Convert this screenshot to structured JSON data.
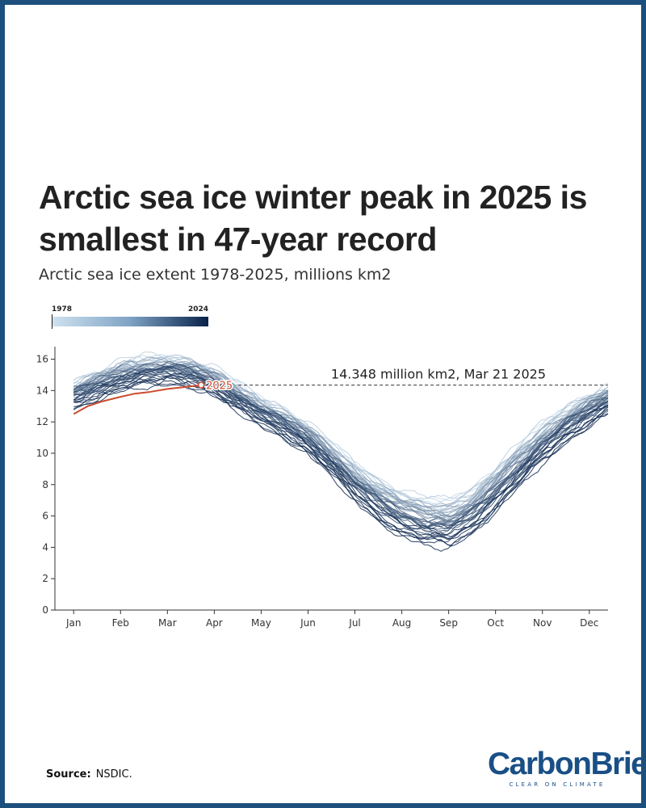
{
  "title": "Arctic sea ice winter peak in 2025 is smallest in 47-year record",
  "subtitle": "Arctic sea ice extent 1978-2025, millions km2",
  "legend": {
    "start": "1978",
    "end": "2024"
  },
  "annotation": "14.348 million km2, Mar 21 2025",
  "highlight_label": "2025",
  "source_label": "Source:",
  "source_text": "NSDIC.",
  "logo": {
    "name": "CarbonBrief",
    "tagline": "CLEAR ON CLIMATE"
  },
  "colors": {
    "old_years": "#cfe2f0",
    "recent_years": "#08224a",
    "highlight": "#cc4b2d",
    "frame": "#1d4f7c",
    "logo": "#1a4f86"
  },
  "chart_data": {
    "type": "line",
    "x_unit": "month",
    "x_ticks": [
      "Jan",
      "Feb",
      "Mar",
      "Apr",
      "May",
      "Jun",
      "Jul",
      "Aug",
      "Sep",
      "Oct",
      "Nov",
      "Dec"
    ],
    "y_ticks": [
      0,
      2,
      4,
      6,
      8,
      10,
      12,
      14,
      16
    ],
    "ylim": [
      0,
      16.8
    ],
    "year_range": [
      1978,
      2024
    ],
    "x_points": [
      1,
      1.5,
      2,
      2.5,
      3,
      3.5,
      4,
      4.5,
      5,
      5.5,
      6,
      6.5,
      7,
      7.5,
      8,
      8.5,
      9,
      9.5,
      10,
      10.5,
      11,
      11.5,
      12,
      12.4
    ],
    "climatology_1978": [
      14.3,
      15.0,
      15.6,
      15.9,
      16.0,
      15.8,
      15.2,
      14.2,
      13.3,
      12.6,
      11.7,
      10.4,
      9.2,
      8.2,
      7.5,
      7.0,
      6.9,
      7.6,
      9.0,
      10.4,
      11.7,
      12.8,
      13.6,
      14.0
    ],
    "climatology_2024": [
      13.2,
      13.8,
      14.3,
      14.6,
      14.8,
      14.6,
      14.0,
      13.0,
      12.1,
      11.3,
      10.3,
      8.9,
      7.3,
      6.0,
      5.0,
      4.5,
      4.3,
      5.2,
      6.6,
      8.2,
      9.7,
      11.0,
      12.1,
      12.9
    ],
    "series": [
      {
        "name": "2025",
        "x": [
          1,
          1.3,
          1.6,
          2,
          2.3,
          2.6,
          3,
          3.3,
          3.6,
          3.72
        ],
        "values": [
          12.5,
          13.0,
          13.3,
          13.6,
          13.8,
          13.9,
          14.1,
          14.2,
          14.3,
          14.348
        ]
      }
    ],
    "reference_line": {
      "value": 14.348,
      "style": "dashed"
    }
  }
}
